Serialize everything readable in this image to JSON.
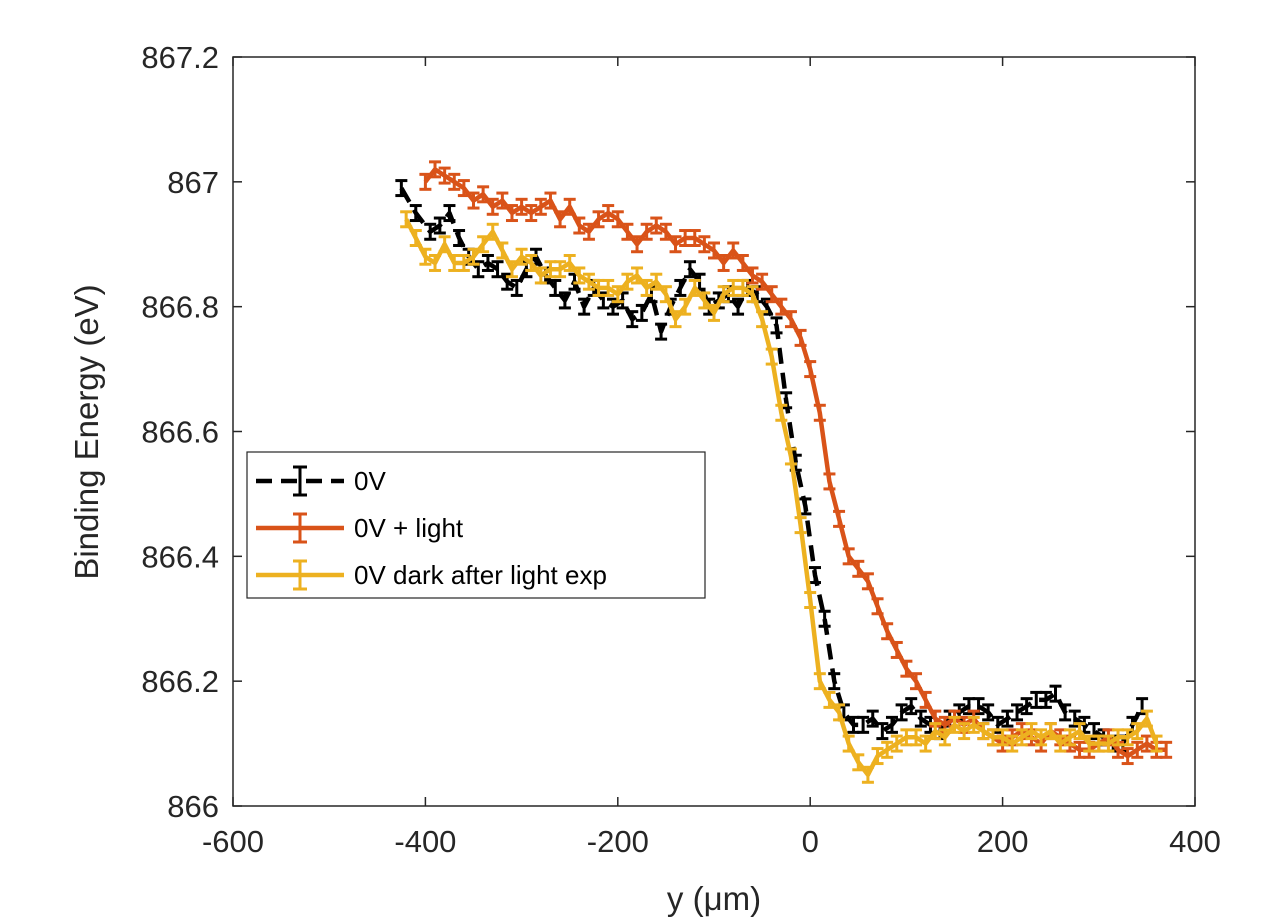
{
  "chart_data": {
    "type": "line",
    "title": "",
    "xlabel": "y (μm)",
    "ylabel": "Binding Energy (eV)",
    "xlim": [
      -600,
      400
    ],
    "ylim": [
      866,
      867.2
    ],
    "xticks": [
      -600,
      -400,
      -200,
      0,
      200,
      400
    ],
    "yticks": [
      866,
      866.2,
      866.4,
      866.6,
      866.8,
      867,
      867.2
    ],
    "xtick_labels": [
      "-600",
      "-400",
      "-200",
      "0",
      "200",
      "400"
    ],
    "ytick_labels": [
      "866",
      "866.2",
      "866.4",
      "866.6",
      "866.8",
      "867",
      "867.2"
    ],
    "legend_position": "left",
    "grid": false,
    "error_bar_halfwidth": 0.012,
    "series": [
      {
        "name": "0V",
        "color": "#000000",
        "dashed": true,
        "x": [
          -425,
          -410,
          -395,
          -385,
          -375,
          -365,
          -355,
          -345,
          -335,
          -325,
          -315,
          -305,
          -295,
          -285,
          -275,
          -265,
          -255,
          -245,
          -235,
          -225,
          -215,
          -205,
          -195,
          -185,
          -175,
          -165,
          -155,
          -145,
          -135,
          -125,
          -115,
          -105,
          -95,
          -85,
          -75,
          -65,
          -55,
          -45,
          -35,
          -25,
          -15,
          -5,
          5,
          15,
          25,
          35,
          45,
          55,
          65,
          75,
          85,
          95,
          105,
          115,
          125,
          135,
          145,
          155,
          165,
          175,
          185,
          195,
          205,
          215,
          225,
          235,
          245,
          255,
          265,
          275,
          285,
          295,
          305,
          315,
          325,
          335,
          345
        ],
        "y": [
          866.99,
          866.95,
          866.92,
          866.93,
          866.95,
          866.91,
          866.88,
          866.86,
          866.87,
          866.86,
          866.84,
          866.83,
          866.86,
          866.88,
          866.85,
          866.83,
          866.81,
          866.84,
          866.8,
          866.83,
          866.81,
          866.8,
          866.81,
          866.78,
          866.79,
          866.82,
          866.76,
          866.8,
          866.83,
          866.86,
          866.84,
          866.8,
          866.81,
          866.82,
          866.8,
          866.83,
          866.82,
          866.8,
          866.77,
          866.65,
          866.55,
          866.48,
          866.37,
          866.3,
          866.2,
          866.15,
          866.13,
          866.13,
          866.14,
          866.12,
          866.13,
          866.15,
          866.16,
          866.14,
          866.13,
          866.12,
          866.14,
          866.15,
          866.16,
          866.16,
          866.15,
          866.13,
          866.14,
          866.15,
          866.16,
          866.17,
          866.17,
          866.18,
          866.15,
          866.14,
          866.13,
          866.12,
          866.11,
          866.1,
          866.1,
          866.13,
          866.16
        ]
      },
      {
        "name": "0V + light",
        "color": "#d95319",
        "dashed": false,
        "x": [
          -400,
          -390,
          -380,
          -370,
          -360,
          -350,
          -340,
          -330,
          -320,
          -310,
          -300,
          -290,
          -280,
          -270,
          -260,
          -250,
          -240,
          -230,
          -220,
          -210,
          -200,
          -190,
          -180,
          -170,
          -160,
          -150,
          -140,
          -130,
          -120,
          -110,
          -100,
          -90,
          -80,
          -70,
          -60,
          -50,
          -40,
          -30,
          -20,
          -10,
          0,
          10,
          20,
          30,
          40,
          50,
          60,
          70,
          80,
          90,
          100,
          110,
          120,
          130,
          140,
          150,
          160,
          170,
          180,
          190,
          200,
          210,
          220,
          230,
          240,
          250,
          260,
          270,
          280,
          290,
          300,
          310,
          320,
          330,
          340,
          350,
          360,
          370
        ],
        "y": [
          867.0,
          867.02,
          867.01,
          867.0,
          866.99,
          866.97,
          866.98,
          866.96,
          866.97,
          866.95,
          866.96,
          866.95,
          866.96,
          866.97,
          866.94,
          866.96,
          866.93,
          866.92,
          866.94,
          866.95,
          866.94,
          866.92,
          866.9,
          866.92,
          866.93,
          866.92,
          866.9,
          866.91,
          866.91,
          866.9,
          866.89,
          866.87,
          866.89,
          866.87,
          866.85,
          866.84,
          866.82,
          866.8,
          866.78,
          866.75,
          866.7,
          866.63,
          866.52,
          866.46,
          866.4,
          866.38,
          866.36,
          866.32,
          866.28,
          866.25,
          866.22,
          866.2,
          866.17,
          866.14,
          866.13,
          866.14,
          866.13,
          866.14,
          866.12,
          866.11,
          866.1,
          866.11,
          866.12,
          866.11,
          866.1,
          866.12,
          866.11,
          866.1,
          866.09,
          866.09,
          866.1,
          866.11,
          866.09,
          866.08,
          866.09,
          866.1,
          866.09,
          866.09
        ]
      },
      {
        "name": "0V dark after light exp",
        "color": "#edb120",
        "dashed": false,
        "x": [
          -420,
          -410,
          -400,
          -390,
          -380,
          -370,
          -360,
          -350,
          -340,
          -330,
          -320,
          -310,
          -300,
          -290,
          -280,
          -270,
          -260,
          -250,
          -240,
          -230,
          -220,
          -210,
          -200,
          -190,
          -180,
          -170,
          -160,
          -150,
          -140,
          -130,
          -120,
          -110,
          -100,
          -90,
          -80,
          -70,
          -60,
          -50,
          -40,
          -30,
          -20,
          -10,
          0,
          10,
          20,
          30,
          40,
          50,
          60,
          70,
          80,
          90,
          100,
          110,
          120,
          130,
          140,
          150,
          160,
          170,
          180,
          190,
          200,
          210,
          220,
          230,
          240,
          250,
          260,
          270,
          280,
          290,
          300,
          310,
          320,
          330,
          340,
          350,
          360
        ],
        "y": [
          866.94,
          866.91,
          866.88,
          866.87,
          866.9,
          866.87,
          866.87,
          866.88,
          866.9,
          866.92,
          866.89,
          866.86,
          866.88,
          866.87,
          866.85,
          866.86,
          866.86,
          866.87,
          866.85,
          866.84,
          866.83,
          866.83,
          866.82,
          866.84,
          866.85,
          866.83,
          866.84,
          866.82,
          866.78,
          866.8,
          866.83,
          866.81,
          866.79,
          866.82,
          866.83,
          866.83,
          866.82,
          866.78,
          866.72,
          866.63,
          866.56,
          866.45,
          866.33,
          866.2,
          866.17,
          866.15,
          866.1,
          866.07,
          866.05,
          866.08,
          866.09,
          866.1,
          866.11,
          866.11,
          866.1,
          866.12,
          866.11,
          866.13,
          866.12,
          866.13,
          866.12,
          866.11,
          866.11,
          866.1,
          866.11,
          866.12,
          866.11,
          866.12,
          866.1,
          866.11,
          866.12,
          866.1,
          866.1,
          866.1,
          866.11,
          866.11,
          866.12,
          866.14,
          866.1
        ]
      }
    ]
  }
}
